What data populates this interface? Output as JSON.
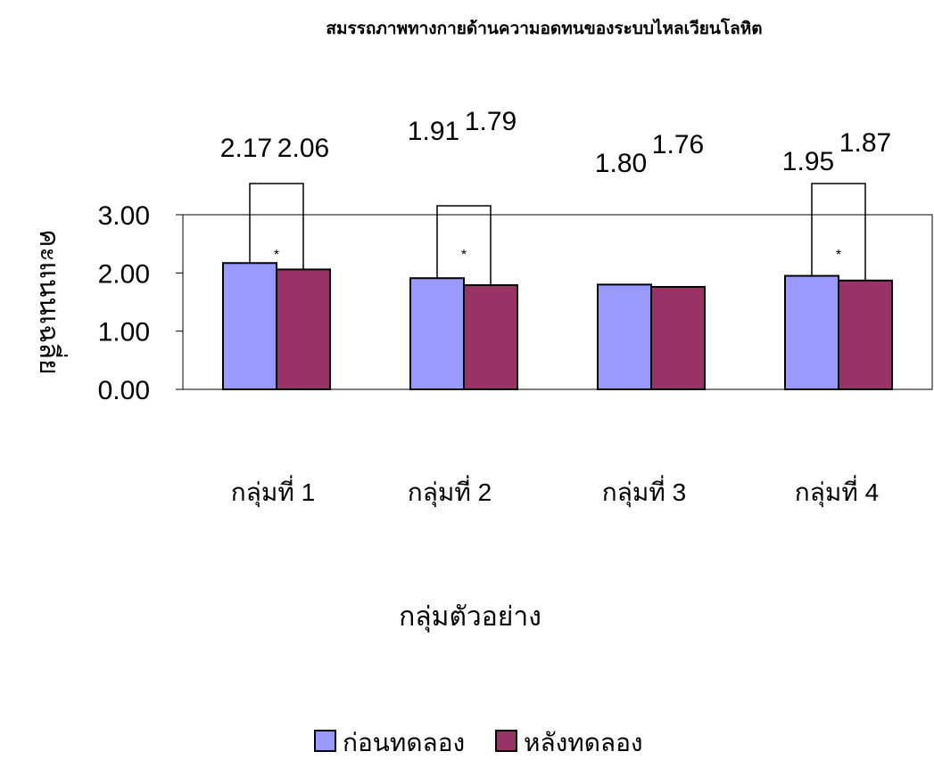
{
  "chart_data": {
    "type": "bar",
    "title": "สมรรถภาพทางกายด้านความอดทนของระบบไหลเวียนโลหิต",
    "xlabel": "กลุ่มตัวอย่าง",
    "ylabel": "คะแนนเฉลี่ย",
    "categories": [
      "กลุ่มที่ 1",
      "กลุ่มที่ 2",
      "กลุ่มที่ 3",
      "กลุ่มที่ 4"
    ],
    "series": [
      {
        "name": "ก่อนทดลอง",
        "values": [
          2.17,
          1.91,
          1.8,
          1.95
        ],
        "labels": [
          "2.17",
          "1.91",
          "1.80",
          "1.95"
        ],
        "color": "#9999FF"
      },
      {
        "name": "หลังทดลอง",
        "values": [
          2.06,
          1.79,
          1.76,
          1.87
        ],
        "labels": [
          "2.06",
          "1.79",
          "1.76",
          "1.87"
        ],
        "color": "#993366"
      }
    ],
    "yticks": [
      "0.00",
      "1.00",
      "2.00",
      "3.00"
    ],
    "ylim": [
      0,
      3
    ],
    "significance": [
      {
        "category": 0,
        "marker": "*"
      },
      {
        "category": 1,
        "marker": "*"
      },
      {
        "category": 3,
        "marker": "*"
      }
    ],
    "legend_position": "bottom",
    "grid": false
  }
}
